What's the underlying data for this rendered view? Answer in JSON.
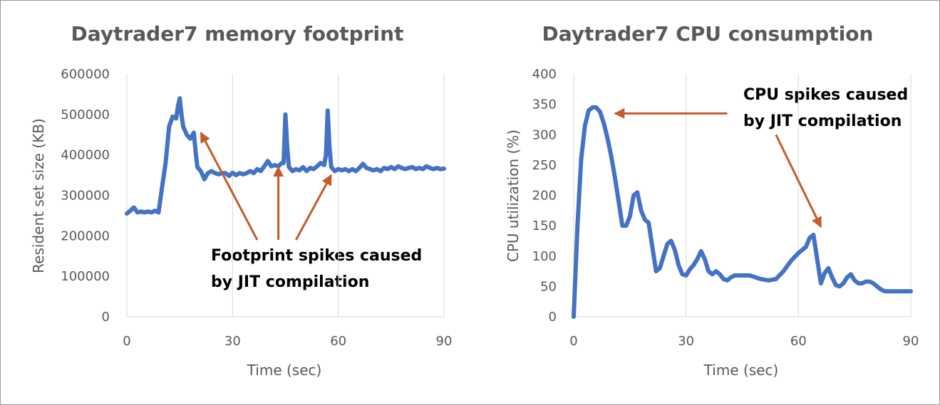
{
  "colors": {
    "series": "#4472c4",
    "arrow": "#c55a2b",
    "grid": "#d9d9d9",
    "text": "#595959"
  },
  "chart_data": [
    {
      "type": "line",
      "title": "Daytrader7 memory footprint",
      "xlabel": "Time (sec)",
      "ylabel": "Resident set size (KB)",
      "xlim": [
        0,
        90
      ],
      "ylim": [
        0,
        600000
      ],
      "xticks": [
        "0",
        "30",
        "60",
        "90"
      ],
      "yticks": [
        "0",
        "100000",
        "200000",
        "300000",
        "400000",
        "500000",
        "600000"
      ],
      "grid": "vertical",
      "annotation": {
        "lines": [
          "Footprint spikes caused",
          "by JIT compilation"
        ]
      },
      "arrows": [
        {
          "from": [
            37,
            190000
          ],
          "to": [
            21,
            455000
          ]
        },
        {
          "from": [
            43,
            190000
          ],
          "to": [
            43,
            370000
          ]
        },
        {
          "from": [
            48,
            190000
          ],
          "to": [
            58,
            350000
          ]
        }
      ],
      "series": [
        {
          "x": [
            0,
            1,
            2,
            3,
            4,
            5,
            6,
            7,
            8,
            9,
            10,
            11,
            12,
            13,
            14,
            14.5,
            15,
            15.5,
            16,
            17,
            18,
            19,
            19.5,
            20,
            21,
            22,
            23,
            24,
            25,
            26,
            27,
            28,
            29,
            30,
            31,
            32,
            33,
            34,
            35,
            36,
            37,
            38,
            39,
            40,
            41,
            42,
            43,
            44,
            44.5,
            45,
            45.5,
            46,
            47,
            48,
            49,
            50,
            51,
            52,
            53,
            54,
            55,
            56,
            56.5,
            57,
            57.5,
            58,
            59,
            60,
            61,
            62,
            63,
            64,
            65,
            66,
            67,
            68,
            69,
            70,
            71,
            72,
            73,
            74,
            75,
            76,
            77,
            78,
            79,
            80,
            81,
            82,
            83,
            84,
            85,
            86,
            87,
            88,
            89,
            90
          ],
          "y": [
            255000,
            262000,
            270000,
            258000,
            260000,
            258000,
            260000,
            258000,
            262000,
            258000,
            320000,
            380000,
            470000,
            495000,
            490000,
            520000,
            540000,
            500000,
            470000,
            450000,
            440000,
            455000,
            410000,
            370000,
            360000,
            340000,
            355000,
            360000,
            355000,
            352000,
            355000,
            355000,
            348000,
            356000,
            350000,
            355000,
            352000,
            355000,
            360000,
            355000,
            365000,
            360000,
            372000,
            385000,
            372000,
            375000,
            372000,
            380000,
            380000,
            500000,
            420000,
            370000,
            360000,
            365000,
            362000,
            370000,
            360000,
            368000,
            365000,
            372000,
            380000,
            375000,
            400000,
            510000,
            420000,
            370000,
            360000,
            365000,
            362000,
            365000,
            360000,
            365000,
            360000,
            368000,
            378000,
            368000,
            365000,
            362000,
            365000,
            360000,
            368000,
            365000,
            370000,
            365000,
            372000,
            368000,
            365000,
            368000,
            370000,
            365000,
            368000,
            365000,
            372000,
            368000,
            365000,
            368000,
            365000,
            366000
          ]
        }
      ]
    },
    {
      "type": "line",
      "title": "Daytrader7 CPU consumption",
      "xlabel": "Time (sec)",
      "ylabel": "CPU utilization (%)",
      "xlim": [
        0,
        90
      ],
      "ylim": [
        0,
        400
      ],
      "xticks": [
        "0",
        "30",
        "60",
        "90"
      ],
      "yticks": [
        "0",
        "50",
        "100",
        "150",
        "200",
        "250",
        "300",
        "350",
        "400"
      ],
      "grid": "vertical",
      "annotation": {
        "lines": [
          "CPU spikes caused",
          "by JIT compilation"
        ]
      },
      "arrows": [
        {
          "from": [
            41,
            335
          ],
          "to": [
            11,
            335
          ]
        },
        {
          "from": [
            54,
            300
          ],
          "to": [
            66,
            148
          ]
        }
      ],
      "series": [
        {
          "x": [
            0,
            1,
            2,
            3,
            4,
            5,
            6,
            7,
            8,
            9,
            10,
            11,
            12,
            13,
            14,
            15,
            16,
            17,
            18,
            19,
            20,
            21,
            22,
            23,
            24,
            25,
            26,
            27,
            28,
            29,
            30,
            31,
            32,
            33,
            34,
            35,
            36,
            37,
            38,
            39,
            40,
            41,
            42,
            43,
            44,
            45,
            46,
            47,
            48,
            49,
            50,
            52,
            54,
            56,
            58,
            60,
            62,
            63,
            64,
            65,
            66,
            67,
            68,
            69,
            70,
            71,
            72,
            73,
            74,
            75,
            76,
            77,
            78,
            79,
            80,
            81,
            82,
            83,
            84,
            85,
            86,
            87,
            88,
            89,
            90
          ],
          "y": [
            0,
            150,
            260,
            315,
            340,
            345,
            345,
            338,
            320,
            295,
            265,
            230,
            190,
            150,
            150,
            165,
            200,
            205,
            175,
            160,
            155,
            115,
            75,
            80,
            100,
            120,
            125,
            110,
            85,
            70,
            68,
            78,
            85,
            95,
            108,
            95,
            75,
            70,
            75,
            70,
            62,
            60,
            65,
            68,
            68,
            68,
            68,
            68,
            66,
            64,
            62,
            60,
            62,
            75,
            92,
            105,
            115,
            130,
            135,
            95,
            55,
            72,
            80,
            65,
            52,
            50,
            55,
            65,
            70,
            60,
            55,
            55,
            58,
            58,
            55,
            50,
            45,
            42,
            42,
            42,
            42,
            42,
            42,
            42,
            42
          ]
        }
      ]
    }
  ]
}
